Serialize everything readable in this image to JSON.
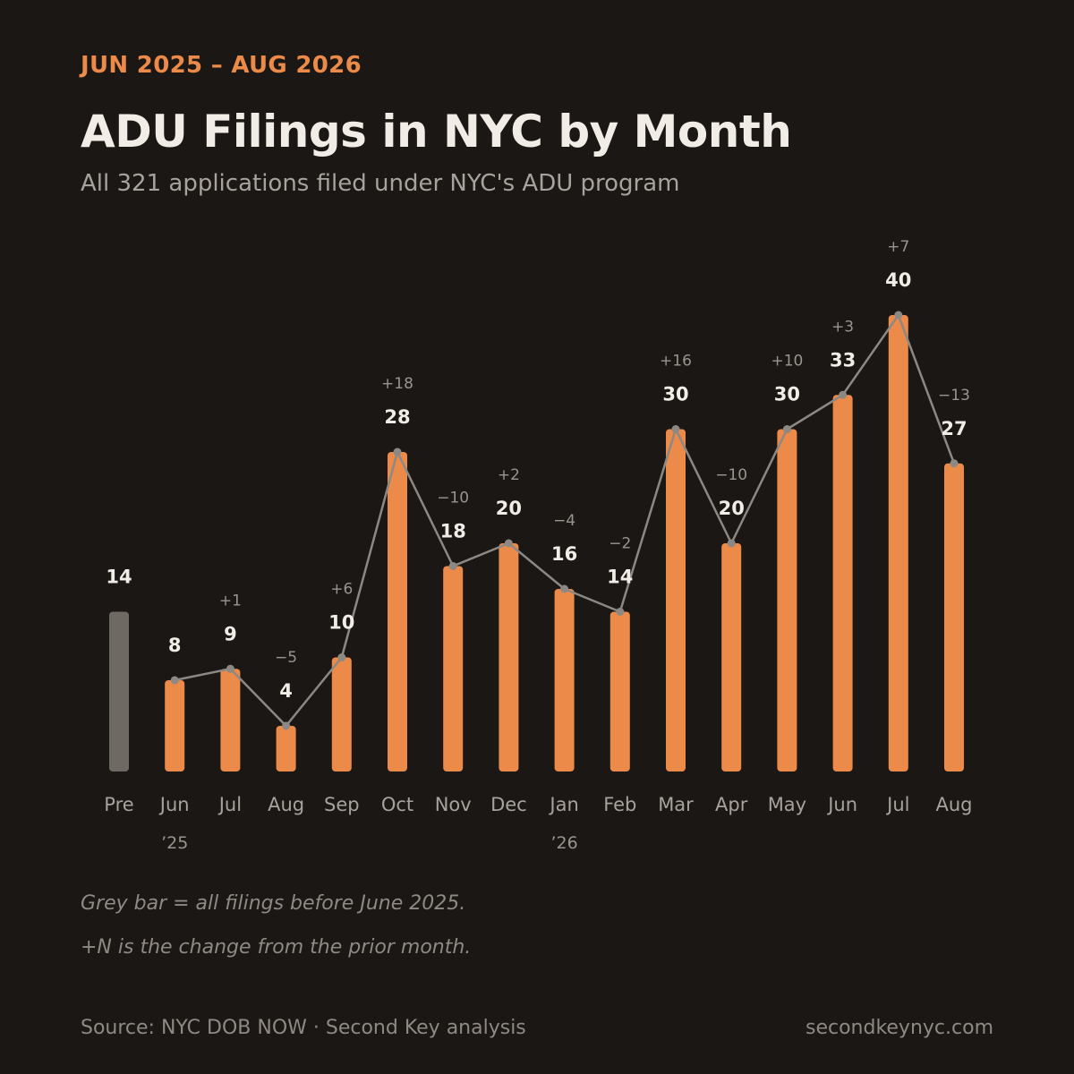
{
  "header": {
    "date_range": "JUN 2025 – AUG 2026",
    "title": "ADU Filings in NYC by Month",
    "subtitle": "All 321 applications filed under NYC's ADU program"
  },
  "chart_data": {
    "type": "bar",
    "categories": [
      "Pre",
      "Jun",
      "Jul",
      "Aug",
      "Sep",
      "Oct",
      "Nov",
      "Dec",
      "Jan",
      "Feb",
      "Mar",
      "Apr",
      "May",
      "Jun",
      "Jul",
      "Aug"
    ],
    "year_labels": [
      "",
      "’25",
      "",
      "",
      "",
      "",
      "",
      "",
      "’26",
      "",
      "",
      "",
      "",
      "",
      "",
      ""
    ],
    "values": [
      14,
      8,
      9,
      4,
      10,
      28,
      18,
      20,
      16,
      14,
      30,
      20,
      30,
      33,
      40,
      27
    ],
    "changes": [
      "",
      "",
      "+1",
      "−5",
      "+6",
      "+18",
      "−10",
      "+2",
      "−4",
      "−2",
      "+16",
      "−10",
      "+10",
      "+3",
      "+7",
      "−13"
    ],
    "ylim": [
      0,
      40
    ],
    "grid": false,
    "legend": "none",
    "colors": {
      "bar": "#ec8a4a",
      "pre_bar": "#6e6963",
      "line": "#8c8884",
      "value_label": "#f1ece6",
      "change_label": "#9a948e",
      "axis_label": "#a8a29c"
    }
  },
  "notes": {
    "grey_bar": "Grey bar = all filings before June 2025.",
    "change": "+N is the change from the prior month."
  },
  "footer": {
    "source": "Source: NYC DOB NOW · Second Key analysis",
    "site": "secondkeynyc.com"
  }
}
